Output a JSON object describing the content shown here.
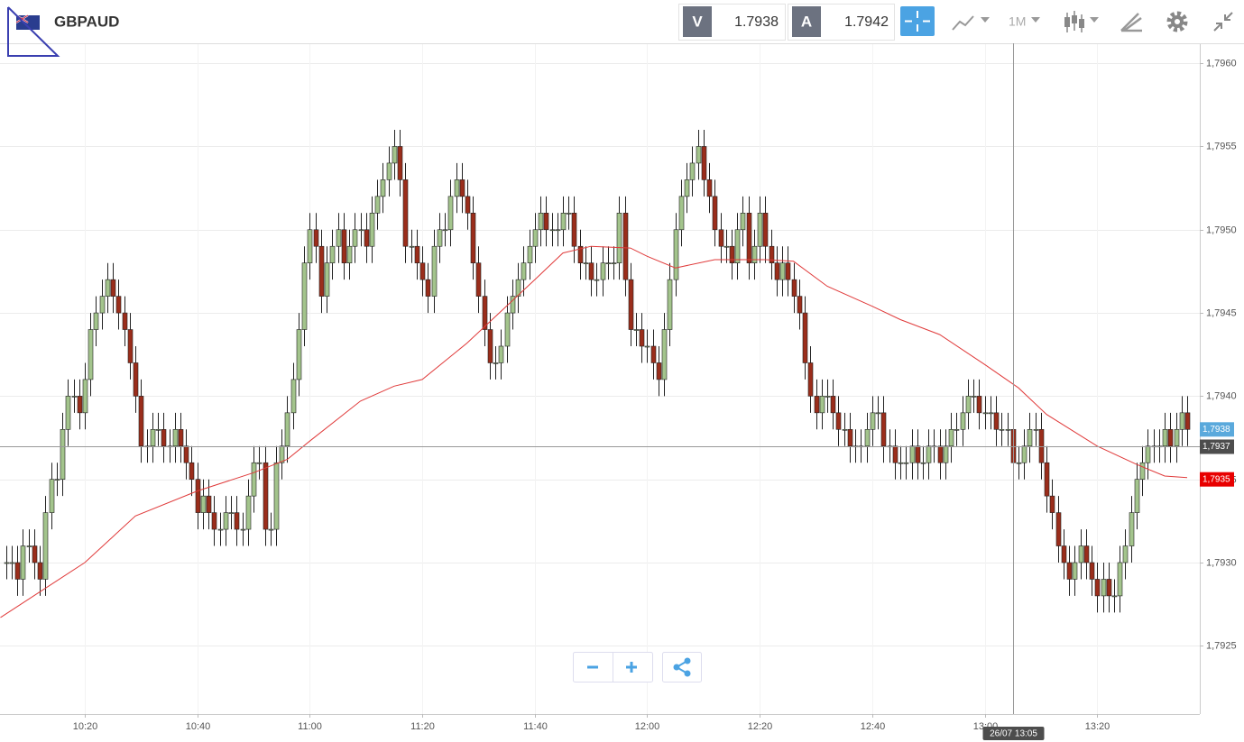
{
  "header": {
    "symbol": "GBPAUD",
    "bid_label": "V",
    "bid": "1.7938",
    "ask_label": "A",
    "ask": "1.7942",
    "timeframe": "1M"
  },
  "chart_data": {
    "type": "candlestick",
    "x": [
      606,
      607,
      608,
      609,
      610,
      611,
      612,
      613,
      614,
      615,
      616,
      617,
      618,
      619,
      620,
      621,
      622,
      623,
      624,
      625,
      626,
      627,
      628,
      629,
      630,
      631,
      632,
      633,
      634,
      635,
      636,
      637,
      638,
      639,
      640,
      641,
      642,
      643,
      644,
      645,
      646,
      647,
      648,
      649,
      650,
      651,
      652,
      653,
      654,
      655,
      656,
      657,
      658,
      659,
      660,
      661,
      662,
      663,
      664,
      665,
      666,
      667,
      668,
      669,
      670,
      671,
      672,
      673,
      674,
      675,
      676,
      677,
      678,
      679,
      680,
      681,
      682,
      683,
      684,
      685,
      686,
      687,
      688,
      689,
      690,
      691,
      692,
      693,
      694,
      695,
      696,
      697,
      698,
      699,
      700,
      701,
      702,
      703,
      704,
      705,
      706,
      707,
      708,
      709,
      710,
      711,
      712,
      713,
      714,
      715,
      716,
      717,
      718,
      719,
      720,
      721,
      722,
      723,
      724,
      725,
      726,
      727,
      728,
      729,
      730,
      731,
      732,
      733,
      734,
      735,
      736,
      737,
      738,
      739,
      740,
      741,
      742,
      743,
      744,
      745,
      746,
      747,
      748,
      749,
      750,
      751,
      752,
      753,
      754,
      755,
      756,
      757,
      758,
      759,
      760,
      761,
      762,
      763,
      764,
      765,
      766,
      767,
      768,
      769,
      770,
      771,
      772,
      773,
      774,
      775,
      776,
      777,
      778,
      779,
      780,
      781,
      782,
      783,
      784,
      785,
      786,
      787,
      788,
      789,
      790,
      791,
      792,
      793,
      794,
      795,
      796,
      797,
      798,
      799,
      800,
      801,
      802,
      803,
      804,
      805,
      806,
      807,
      808,
      809,
      810,
      811,
      812,
      813,
      814,
      815,
      816
    ],
    "open": [
      1.793,
      1.793,
      1.793,
      1.7929,
      1.7931,
      1.7931,
      1.793,
      1.7929,
      1.7933,
      1.7935,
      1.7935,
      1.7938,
      1.794,
      1.794,
      1.7939,
      1.7941,
      1.7944,
      1.7945,
      1.7946,
      1.7947,
      1.7946,
      1.7945,
      1.7944,
      1.7942,
      1.794,
      1.7937,
      1.7937,
      1.7938,
      1.7938,
      1.7937,
      1.7937,
      1.7938,
      1.7937,
      1.7936,
      1.7935,
      1.7933,
      1.7934,
      1.7933,
      1.7932,
      1.7932,
      1.7933,
      1.7933,
      1.7932,
      1.7932,
      1.7934,
      1.7936,
      1.7936,
      1.7932,
      1.7932,
      1.7936,
      1.7937,
      1.7939,
      1.7941,
      1.7944,
      1.7948,
      1.795,
      1.7949,
      1.7946,
      1.7948,
      1.7949,
      1.795,
      1.7948,
      1.7949,
      1.795,
      1.795,
      1.7949,
      1.7951,
      1.7952,
      1.7953,
      1.7954,
      1.7955,
      1.7953,
      1.7949,
      1.7949,
      1.7948,
      1.7947,
      1.7946,
      1.7949,
      1.795,
      1.795,
      1.7952,
      1.7953,
      1.7952,
      1.7951,
      1.7948,
      1.7946,
      1.7944,
      1.7942,
      1.7942,
      1.7943,
      1.7945,
      1.7946,
      1.7947,
      1.7948,
      1.7949,
      1.795,
      1.7951,
      1.795,
      1.795,
      1.795,
      1.7951,
      1.7951,
      1.7949,
      1.7948,
      1.7948,
      1.7947,
      1.7947,
      1.7948,
      1.7948,
      1.7948,
      1.7951,
      1.7947,
      1.7944,
      1.7944,
      1.7943,
      1.7943,
      1.7942,
      1.7941,
      1.7944,
      1.7947,
      1.795,
      1.7952,
      1.7953,
      1.7954,
      1.7955,
      1.7953,
      1.7952,
      1.795,
      1.7949,
      1.7949,
      1.7948,
      1.795,
      1.7951,
      1.7948,
      1.7949,
      1.7951,
      1.7949,
      1.7948,
      1.7947,
      1.7948,
      1.7947,
      1.7946,
      1.7945,
      1.7942,
      1.794,
      1.7939,
      1.794,
      1.794,
      1.7939,
      1.7938,
      1.7938,
      1.7937,
      1.7937,
      1.7937,
      1.7938,
      1.7939,
      1.7939,
      1.7937,
      1.7937,
      1.7936,
      1.7936,
      1.7936,
      1.7937,
      1.7936,
      1.7936,
      1.7937,
      1.7937,
      1.7936,
      1.7937,
      1.7938,
      1.7938,
      1.7939,
      1.794,
      1.794,
      1.7939,
      1.7939,
      1.7939,
      1.7938,
      1.7938,
      1.7938,
      1.7936,
      1.7936,
      1.7937,
      1.7938,
      1.7938,
      1.7936,
      1.7934,
      1.7933,
      1.7931,
      1.793,
      1.7929,
      1.793,
      1.7931,
      1.793,
      1.7929,
      1.7928,
      1.7929,
      1.7928,
      1.7928,
      1.793,
      1.7931,
      1.7933,
      1.7935,
      1.7936,
      1.7937,
      1.7937,
      1.7937,
      1.7938,
      1.7937,
      1.7938,
      1.7939
    ],
    "high": [
      1.7931,
      1.7931,
      1.7931,
      1.7932,
      1.7932,
      1.7932,
      1.7931,
      1.7934,
      1.7936,
      1.7936,
      1.7939,
      1.7941,
      1.7941,
      1.7941,
      1.7942,
      1.7945,
      1.7946,
      1.7947,
      1.7948,
      1.7948,
      1.7947,
      1.7946,
      1.7945,
      1.7943,
      1.7941,
      1.7938,
      1.7939,
      1.7939,
      1.7939,
      1.7938,
      1.7939,
      1.7939,
      1.7938,
      1.7937,
      1.7936,
      1.7935,
      1.7935,
      1.7934,
      1.7933,
      1.7934,
      1.7934,
      1.7934,
      1.7933,
      1.7935,
      1.7937,
      1.7937,
      1.7937,
      1.7933,
      1.7937,
      1.7938,
      1.794,
      1.7942,
      1.7945,
      1.7949,
      1.7951,
      1.7951,
      1.795,
      1.7949,
      1.795,
      1.7951,
      1.7951,
      1.795,
      1.7951,
      1.7951,
      1.7951,
      1.7952,
      1.7953,
      1.7954,
      1.7955,
      1.7956,
      1.7956,
      1.7954,
      1.795,
      1.795,
      1.7949,
      1.7948,
      1.795,
      1.7951,
      1.7951,
      1.7953,
      1.7954,
      1.7954,
      1.7953,
      1.7952,
      1.7949,
      1.7947,
      1.7945,
      1.7943,
      1.7944,
      1.7946,
      1.7947,
      1.7948,
      1.7949,
      1.795,
      1.7951,
      1.7952,
      1.7952,
      1.7951,
      1.7951,
      1.7952,
      1.7952,
      1.7952,
      1.795,
      1.7949,
      1.7949,
      1.7948,
      1.7949,
      1.7949,
      1.7949,
      1.7952,
      1.7952,
      1.7948,
      1.7945,
      1.7945,
      1.7944,
      1.7944,
      1.7943,
      1.7945,
      1.7948,
      1.7951,
      1.7953,
      1.7954,
      1.7955,
      1.7956,
      1.7956,
      1.7954,
      1.7953,
      1.7951,
      1.795,
      1.795,
      1.7951,
      1.7952,
      1.7952,
      1.795,
      1.7952,
      1.7952,
      1.795,
      1.7949,
      1.7949,
      1.7949,
      1.7948,
      1.7947,
      1.7946,
      1.7943,
      1.7941,
      1.7941,
      1.7941,
      1.7941,
      1.794,
      1.7939,
      1.7939,
      1.7938,
      1.7938,
      1.7939,
      1.794,
      1.794,
      1.794,
      1.7938,
      1.7938,
      1.7937,
      1.7937,
      1.7938,
      1.7938,
      1.7937,
      1.7938,
      1.7938,
      1.7938,
      1.7938,
      1.7939,
      1.7939,
      1.794,
      1.7941,
      1.7941,
      1.7941,
      1.794,
      1.794,
      1.794,
      1.7939,
      1.7939,
      1.7939,
      1.7937,
      1.7938,
      1.7939,
      1.7939,
      1.7939,
      1.7937,
      1.7935,
      1.7934,
      1.7932,
      1.7931,
      1.7931,
      1.7932,
      1.7932,
      1.7931,
      1.793,
      1.793,
      1.793,
      1.7929,
      1.7931,
      1.7932,
      1.7934,
      1.7936,
      1.7937,
      1.7938,
      1.7938,
      1.7938,
      1.7939,
      1.7939,
      1.7939,
      1.794,
      1.794
    ],
    "low": [
      1.7929,
      1.7929,
      1.7928,
      1.7928,
      1.793,
      1.7929,
      1.7928,
      1.7928,
      1.7932,
      1.7934,
      1.7934,
      1.7937,
      1.7939,
      1.7938,
      1.7938,
      1.794,
      1.7943,
      1.7944,
      1.7945,
      1.7945,
      1.7944,
      1.7943,
      1.7941,
      1.7939,
      1.7936,
      1.7936,
      1.7936,
      1.7937,
      1.7936,
      1.7936,
      1.7936,
      1.7936,
      1.7935,
      1.7934,
      1.7932,
      1.7932,
      1.7932,
      1.7931,
      1.7931,
      1.7931,
      1.7932,
      1.7931,
      1.7931,
      1.7931,
      1.7933,
      1.7935,
      1.7931,
      1.7931,
      1.7931,
      1.7935,
      1.7936,
      1.7938,
      1.794,
      1.7943,
      1.7947,
      1.7948,
      1.7945,
      1.7945,
      1.7947,
      1.7948,
      1.7947,
      1.7947,
      1.7948,
      1.7949,
      1.7948,
      1.7948,
      1.795,
      1.7951,
      1.7952,
      1.7953,
      1.7952,
      1.7948,
      1.7948,
      1.7947,
      1.7946,
      1.7945,
      1.7945,
      1.7948,
      1.7949,
      1.7949,
      1.7951,
      1.7951,
      1.795,
      1.7947,
      1.7945,
      1.7943,
      1.7941,
      1.7941,
      1.7941,
      1.7942,
      1.7944,
      1.7945,
      1.7946,
      1.7947,
      1.7948,
      1.7949,
      1.7949,
      1.7949,
      1.7949,
      1.7949,
      1.795,
      1.7948,
      1.7947,
      1.7947,
      1.7946,
      1.7946,
      1.7946,
      1.7947,
      1.7947,
      1.7947,
      1.7946,
      1.7943,
      1.7943,
      1.7942,
      1.7942,
      1.7941,
      1.794,
      1.794,
      1.7943,
      1.7946,
      1.7949,
      1.7951,
      1.7952,
      1.7953,
      1.7952,
      1.7951,
      1.7949,
      1.7948,
      1.7948,
      1.7947,
      1.7947,
      1.7949,
      1.7947,
      1.7947,
      1.7948,
      1.7948,
      1.7947,
      1.7946,
      1.7946,
      1.7946,
      1.7945,
      1.7944,
      1.7941,
      1.7939,
      1.7938,
      1.7938,
      1.7939,
      1.7938,
      1.7937,
      1.7937,
      1.7936,
      1.7936,
      1.7936,
      1.7936,
      1.7937,
      1.7938,
      1.7936,
      1.7936,
      1.7935,
      1.7935,
      1.7935,
      1.7935,
      1.7935,
      1.7935,
      1.7935,
      1.7936,
      1.7935,
      1.7935,
      1.7936,
      1.7937,
      1.7937,
      1.7938,
      1.7939,
      1.7938,
      1.7938,
      1.7938,
      1.7937,
      1.7937,
      1.7937,
      1.7935,
      1.7935,
      1.7935,
      1.7936,
      1.7937,
      1.7935,
      1.7933,
      1.7932,
      1.793,
      1.7929,
      1.7928,
      1.7928,
      1.7929,
      1.7929,
      1.7928,
      1.7927,
      1.7927,
      1.7927,
      1.7927,
      1.7927,
      1.7929,
      1.793,
      1.7932,
      1.7934,
      1.7935,
      1.7936,
      1.7936,
      1.7936,
      1.7936,
      1.7936,
      1.7937,
      1.7937
    ],
    "close": [
      1.793,
      1.793,
      1.7929,
      1.7931,
      1.7931,
      1.793,
      1.7929,
      1.7933,
      1.7935,
      1.7935,
      1.7938,
      1.794,
      1.794,
      1.7939,
      1.7941,
      1.7944,
      1.7945,
      1.7946,
      1.7947,
      1.7946,
      1.7945,
      1.7944,
      1.7942,
      1.794,
      1.7937,
      1.7937,
      1.7938,
      1.7938,
      1.7937,
      1.7937,
      1.7938,
      1.7937,
      1.7936,
      1.7935,
      1.7933,
      1.7934,
      1.7933,
      1.7932,
      1.7932,
      1.7933,
      1.7933,
      1.7932,
      1.7932,
      1.7934,
      1.7936,
      1.7936,
      1.7932,
      1.7932,
      1.7936,
      1.7937,
      1.7939,
      1.7941,
      1.7944,
      1.7948,
      1.795,
      1.7949,
      1.7946,
      1.7948,
      1.7949,
      1.795,
      1.7948,
      1.7949,
      1.795,
      1.795,
      1.7949,
      1.7951,
      1.7952,
      1.7953,
      1.7954,
      1.7955,
      1.7953,
      1.7949,
      1.7949,
      1.7948,
      1.7947,
      1.7946,
      1.7949,
      1.795,
      1.795,
      1.7952,
      1.7953,
      1.7952,
      1.7951,
      1.7948,
      1.7946,
      1.7944,
      1.7942,
      1.7942,
      1.7943,
      1.7945,
      1.7946,
      1.7947,
      1.7948,
      1.7949,
      1.795,
      1.7951,
      1.795,
      1.795,
      1.795,
      1.7951,
      1.7951,
      1.7949,
      1.7948,
      1.7948,
      1.7947,
      1.7947,
      1.7948,
      1.7948,
      1.7948,
      1.7951,
      1.7947,
      1.7944,
      1.7944,
      1.7943,
      1.7943,
      1.7942,
      1.7941,
      1.7944,
      1.7947,
      1.795,
      1.7952,
      1.7953,
      1.7954,
      1.7955,
      1.7953,
      1.7952,
      1.795,
      1.7949,
      1.7949,
      1.7948,
      1.795,
      1.7951,
      1.7948,
      1.7949,
      1.7951,
      1.7949,
      1.7948,
      1.7947,
      1.7948,
      1.7947,
      1.7946,
      1.7945,
      1.7942,
      1.794,
      1.7939,
      1.794,
      1.794,
      1.7939,
      1.7938,
      1.7938,
      1.7937,
      1.7937,
      1.7937,
      1.7938,
      1.7939,
      1.7939,
      1.7937,
      1.7937,
      1.7936,
      1.7936,
      1.7936,
      1.7937,
      1.7936,
      1.7936,
      1.7937,
      1.7937,
      1.7936,
      1.7937,
      1.7938,
      1.7938,
      1.7939,
      1.794,
      1.794,
      1.7939,
      1.7939,
      1.7939,
      1.7938,
      1.7938,
      1.7938,
      1.7936,
      1.7936,
      1.7937,
      1.7938,
      1.7938,
      1.7936,
      1.7934,
      1.7933,
      1.7931,
      1.793,
      1.7929,
      1.793,
      1.7931,
      1.793,
      1.7929,
      1.7928,
      1.7929,
      1.7928,
      1.7928,
      1.793,
      1.7931,
      1.7933,
      1.7935,
      1.7936,
      1.7937,
      1.7937,
      1.7937,
      1.7938,
      1.7937,
      1.7938,
      1.7939,
      1.7938
    ],
    "up_color": "#a3c48c",
    "down_color": "#9a2d1b",
    "moving_average": {
      "color": "#e03a3a",
      "x": [
        605,
        620,
        629,
        640,
        650,
        656,
        660,
        669,
        675,
        680,
        688,
        694,
        700,
        705,
        710,
        717,
        720,
        725,
        732,
        741,
        746,
        752,
        760,
        765,
        772,
        780,
        786,
        791,
        800,
        807,
        812,
        816
      ],
      "values": [
        1.79267,
        1.793,
        1.79328,
        1.79343,
        1.79354,
        1.79362,
        1.79373,
        1.79397,
        1.79406,
        1.7941,
        1.79432,
        1.79451,
        1.7947,
        1.79486,
        1.7949,
        1.79489,
        1.79484,
        1.79477,
        1.79482,
        1.79482,
        1.79481,
        1.79466,
        1.79454,
        1.79446,
        1.79437,
        1.79419,
        1.79405,
        1.79389,
        1.7937,
        1.79359,
        1.79352,
        1.79351
      ]
    },
    "xlim": [
      604.92,
      818.24
    ],
    "xticks": [
      {
        "value": 620,
        "label": "10:20"
      },
      {
        "value": 640,
        "label": "10:40"
      },
      {
        "value": 660,
        "label": "11:00"
      },
      {
        "value": 680,
        "label": "11:20"
      },
      {
        "value": 700,
        "label": "11:40"
      },
      {
        "value": 720,
        "label": "12:00"
      },
      {
        "value": 740,
        "label": "12:20"
      },
      {
        "value": 760,
        "label": "12:40"
      },
      {
        "value": 780,
        "label": "13:00"
      },
      {
        "value": 800,
        "label": "13:20"
      }
    ],
    "ylim": [
      1.79209,
      1.79612
    ],
    "yticks": [
      {
        "value": 1.7925,
        "label": "1,7925"
      },
      {
        "value": 1.793,
        "label": "1,7930"
      },
      {
        "value": 1.7935,
        "label": "1,7935"
      },
      {
        "value": 1.794,
        "label": "1,7940"
      },
      {
        "value": 1.7945,
        "label": "1,7945"
      },
      {
        "value": 1.795,
        "label": "1,7950"
      },
      {
        "value": 1.7955,
        "label": "1,7955"
      },
      {
        "value": 1.796,
        "label": "1,7960"
      }
    ],
    "grid": true,
    "price_labels": [
      {
        "value": 1.7938,
        "label": "1,7938",
        "color": "#5aa9dc"
      },
      {
        "value": 1.7935,
        "label": "1,7935",
        "color": "#e80000"
      }
    ],
    "crosshair": {
      "x": 785,
      "y": 1.7937,
      "x_label": "26/07 13:05",
      "y_label": "1,7937",
      "label_color": "#4d4d4d"
    }
  }
}
